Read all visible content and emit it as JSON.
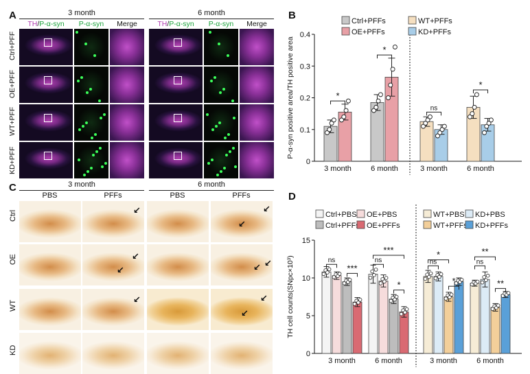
{
  "panel_a": {
    "label": "A",
    "time_headers": [
      "3 month",
      "6 month"
    ],
    "col_header_th": "TH",
    "col_header_sep": "/",
    "col_header_psyn": "P-α-syn",
    "col_psyn": "P-α-syn",
    "col_merge": "Merge",
    "rows": [
      "Ctrl+PFF",
      "OE+PFF",
      "WT+PFF",
      "KD+PFF"
    ]
  },
  "panel_c": {
    "label": "C",
    "time_headers": [
      "3 month",
      "6 month"
    ],
    "cols": [
      "PBS",
      "PFFs",
      "PBS",
      "PFFs"
    ],
    "rows": [
      "Ctrl",
      "OE",
      "WT",
      "KD"
    ]
  },
  "panel_b": {
    "label": "B"
  },
  "panel_d": {
    "label": "D"
  },
  "chart_data": [
    {
      "id": "B",
      "type": "bar",
      "title": "",
      "ylabel": "P-α-syn positive area/TH positive area",
      "ylim": [
        0,
        0.4
      ],
      "yticks": [
        "0",
        "0.1",
        "0.2",
        "0.3",
        "0.4"
      ],
      "legend": [
        {
          "name": "Ctrl+PFFs",
          "color": "#c8c8c8"
        },
        {
          "name": "OE+PFFs",
          "color": "#e8a0a6"
        },
        {
          "name": "WT+PFFs",
          "color": "#f5dfc0"
        },
        {
          "name": "KD+PFFs",
          "color": "#a8cde8"
        }
      ],
      "groups": [
        "3 month",
        "6 month",
        "3 month",
        "6 month"
      ],
      "bars": [
        {
          "group": 0,
          "series": "Ctrl+PFFs",
          "value": 0.11,
          "err": 0.02,
          "points": [
            0.09,
            0.1,
            0.12,
            0.13
          ]
        },
        {
          "group": 0,
          "series": "OE+PFFs",
          "value": 0.155,
          "err": 0.025,
          "points": [
            0.13,
            0.14,
            0.16,
            0.19
          ]
        },
        {
          "group": 1,
          "series": "Ctrl+PFFs",
          "value": 0.185,
          "err": 0.025,
          "points": [
            0.16,
            0.17,
            0.19,
            0.21
          ]
        },
        {
          "group": 1,
          "series": "OE+PFFs",
          "value": 0.265,
          "err": 0.06,
          "points": [
            0.2,
            0.24,
            0.29,
            0.36
          ]
        },
        {
          "group": 2,
          "series": "WT+PFFs",
          "value": 0.125,
          "err": 0.015,
          "points": [
            0.11,
            0.12,
            0.13,
            0.14
          ]
        },
        {
          "group": 2,
          "series": "KD+PFFs",
          "value": 0.1,
          "err": 0.015,
          "points": [
            0.08,
            0.09,
            0.1,
            0.11
          ]
        },
        {
          "group": 3,
          "series": "WT+PFFs",
          "value": 0.17,
          "err": 0.035,
          "points": [
            0.14,
            0.15,
            0.17,
            0.21
          ]
        },
        {
          "group": 3,
          "series": "KD+PFFs",
          "value": 0.115,
          "err": 0.02,
          "points": [
            0.09,
            0.11,
            0.12,
            0.13
          ]
        }
      ],
      "significance": [
        {
          "group": 0,
          "label": "*",
          "y": 0.19
        },
        {
          "group": 1,
          "label": "*",
          "y": 0.335
        },
        {
          "group": 2,
          "label": "ns",
          "y": 0.155
        },
        {
          "group": 3,
          "label": "*",
          "y": 0.225
        }
      ]
    },
    {
      "id": "D",
      "type": "bar",
      "title": "",
      "ylabel": "TH cell counts(SNpc×10³)",
      "ylim": [
        0,
        15
      ],
      "yticks": [
        "0",
        "5",
        "10",
        "15"
      ],
      "legend": [
        {
          "name": "Ctrl+PBS",
          "color": "#f4f4f4"
        },
        {
          "name": "OE+PBS",
          "color": "#f6dcdc"
        },
        {
          "name": "Ctrl+PFFs",
          "color": "#bdbdbd"
        },
        {
          "name": "OE+PFFs",
          "color": "#d96a72"
        },
        {
          "name": "WT+PBS",
          "color": "#f6ecd6"
        },
        {
          "name": "KD+PBS",
          "color": "#dcebf6"
        },
        {
          "name": "WT+PFFs",
          "color": "#f3cf9a"
        },
        {
          "name": "KD+PFFs",
          "color": "#5aa0d8"
        }
      ],
      "groups": [
        "3 month",
        "6 month",
        "3 month",
        "6 month"
      ],
      "bars": [
        {
          "group": 0,
          "series": "Ctrl+PBS",
          "value": 10.8,
          "err": 0.7
        },
        {
          "group": 0,
          "series": "OE+PBS",
          "value": 10.3,
          "err": 0.5
        },
        {
          "group": 0,
          "series": "Ctrl+PFFs",
          "value": 9.5,
          "err": 0.5
        },
        {
          "group": 0,
          "series": "OE+PFFs",
          "value": 6.8,
          "err": 0.6
        },
        {
          "group": 1,
          "series": "Ctrl+PBS",
          "value": 10.5,
          "err": 1.2
        },
        {
          "group": 1,
          "series": "OE+PBS",
          "value": 9.6,
          "err": 0.8
        },
        {
          "group": 1,
          "series": "Ctrl+PFFs",
          "value": 7.2,
          "err": 0.6
        },
        {
          "group": 1,
          "series": "OE+PFFs",
          "value": 5.5,
          "err": 0.7
        },
        {
          "group": 2,
          "series": "WT+PBS",
          "value": 10.2,
          "err": 0.8
        },
        {
          "group": 2,
          "series": "KD+PBS",
          "value": 10.2,
          "err": 0.6
        },
        {
          "group": 2,
          "series": "WT+PFFs",
          "value": 7.5,
          "err": 0.6
        },
        {
          "group": 2,
          "series": "KD+PFFs",
          "value": 9.5,
          "err": 0.5
        },
        {
          "group": 3,
          "series": "WT+PBS",
          "value": 9.3,
          "err": 0.4
        },
        {
          "group": 3,
          "series": "KD+PBS",
          "value": 9.8,
          "err": 1.0
        },
        {
          "group": 3,
          "series": "WT+PFFs",
          "value": 6.1,
          "err": 0.5
        },
        {
          "group": 3,
          "series": "KD+PFFs",
          "value": 7.8,
          "err": 0.4
        }
      ],
      "significance": [
        {
          "group": 0,
          "label": "ns",
          "y": 11.8
        },
        {
          "group": 0,
          "label": "***",
          "y": 10.6
        },
        {
          "group": 1,
          "label": "***",
          "y": 13.0
        },
        {
          "group": 1,
          "label": "ns",
          "y": 11.8
        },
        {
          "group": 1,
          "label": "*",
          "y": 8.4
        },
        {
          "group": 2,
          "label": "ns",
          "y": 11.6
        },
        {
          "group": 2,
          "label": "*",
          "y": 12.4
        },
        {
          "group": 2,
          "label": "*",
          "y": 8.9
        },
        {
          "group": 3,
          "label": "ns",
          "y": 11.6
        },
        {
          "group": 3,
          "label": "**",
          "y": 12.8
        },
        {
          "group": 3,
          "label": "**",
          "y": 8.6
        }
      ]
    }
  ]
}
